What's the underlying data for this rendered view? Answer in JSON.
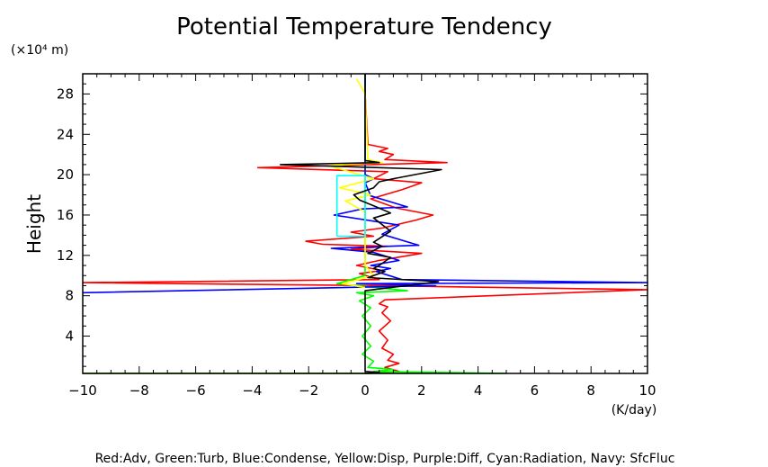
{
  "chart_data": {
    "type": "line",
    "title": "Potential Temperature Tendency",
    "ylabel": "Height",
    "y_unit": "(×10⁴ m)",
    "x_unit": "(K/day)",
    "xlim": [
      -10,
      10
    ],
    "ylim": [
      0.3,
      30
    ],
    "x_ticks": [
      -10,
      -8,
      -6,
      -4,
      -2,
      0,
      2,
      4,
      6,
      8,
      10
    ],
    "x_tick_labels": [
      "−10",
      "−8",
      "−6",
      "−4",
      "−2",
      "0",
      "2",
      "4",
      "6",
      "8",
      "10"
    ],
    "y_ticks": [
      4,
      8,
      12,
      16,
      20,
      24,
      28
    ],
    "y_tick_labels": [
      "4",
      "8",
      "12",
      "16",
      "20",
      "24",
      "28"
    ],
    "caption": "Red:Adv, Green:Turb, Blue:Condense, Yellow:Disp, Purple:Diff, Cyan:Radiation, Navy: SfcFluc",
    "series": [
      {
        "color": "#ff0000",
        "points": [
          [
            -10,
            0.3
          ],
          [
            0.2,
            0.3
          ],
          [
            1.2,
            0.5
          ],
          [
            0.7,
            0.9
          ],
          [
            1.2,
            1.3
          ],
          [
            0.8,
            1.6
          ],
          [
            1.0,
            2.2
          ],
          [
            0.6,
            2.8
          ],
          [
            0.8,
            3.6
          ],
          [
            0.5,
            4.5
          ],
          [
            0.9,
            5.5
          ],
          [
            0.6,
            6.3
          ],
          [
            0.8,
            6.9
          ],
          [
            0.5,
            7.2
          ],
          [
            0.7,
            7.6
          ],
          [
            10,
            8.6
          ],
          [
            0.5,
            9.0
          ],
          [
            -10,
            9.3
          ],
          [
            0.5,
            9.6
          ],
          [
            -0.2,
            10.2
          ],
          [
            0.6,
            10.5
          ],
          [
            -0.3,
            11.0
          ],
          [
            0.5,
            11.5
          ],
          [
            2.0,
            12.2
          ],
          [
            -0.5,
            12.6
          ],
          [
            0.8,
            12.9
          ],
          [
            -1.5,
            13.1
          ],
          [
            -2.1,
            13.4
          ],
          [
            0.3,
            13.9
          ],
          [
            -0.5,
            14.3
          ],
          [
            0.6,
            14.7
          ],
          [
            1.8,
            15.5
          ],
          [
            2.4,
            16.0
          ],
          [
            1.1,
            16.7
          ],
          [
            0.2,
            17.6
          ],
          [
            1.3,
            18.5
          ],
          [
            2.0,
            19.2
          ],
          [
            0.3,
            19.6
          ],
          [
            0.8,
            20.3
          ],
          [
            -3.8,
            20.7
          ],
          [
            2.9,
            21.2
          ],
          [
            0.7,
            21.5
          ],
          [
            1.0,
            22.0
          ],
          [
            0.5,
            22.3
          ],
          [
            0.8,
            22.6
          ],
          [
            0.1,
            23.0
          ],
          [
            0,
            28
          ]
        ]
      },
      {
        "color": "#00ff00",
        "points": [
          [
            -10,
            0.3
          ],
          [
            5,
            0.3
          ],
          [
            0.3,
            0.5
          ],
          [
            1.0,
            0.7
          ],
          [
            0.1,
            0.9
          ],
          [
            0.3,
            1.5
          ],
          [
            -0.1,
            2.2
          ],
          [
            0.2,
            3.0
          ],
          [
            -0.1,
            4.0
          ],
          [
            0.2,
            5.0
          ],
          [
            -0.1,
            6.0
          ],
          [
            0.2,
            6.8
          ],
          [
            -0.2,
            7.5
          ],
          [
            0.3,
            8.0
          ],
          [
            -0.3,
            8.3
          ],
          [
            1.5,
            8.5
          ],
          [
            -1.0,
            9.2
          ],
          [
            0,
            10
          ],
          [
            0,
            30
          ]
        ]
      },
      {
        "color": "#0000ff",
        "points": [
          [
            -10,
            8.3
          ],
          [
            2.5,
            9.0
          ],
          [
            -0.3,
            9.2
          ],
          [
            10,
            9.3
          ],
          [
            1.3,
            9.6
          ],
          [
            0.4,
            10.4
          ],
          [
            0.9,
            10.7
          ],
          [
            0.2,
            11.0
          ],
          [
            1.2,
            11.5
          ],
          [
            0.3,
            12.3
          ],
          [
            -1.2,
            12.7
          ],
          [
            -0.2,
            12.8
          ],
          [
            1.9,
            13.0
          ],
          [
            0.6,
            14.1
          ],
          [
            1.2,
            15.0
          ],
          [
            -1.1,
            16.0
          ],
          [
            -0.1,
            16.6
          ],
          [
            1.5,
            16.8
          ],
          [
            0.2,
            17.9
          ],
          [
            0.0,
            19.2
          ],
          [
            0.3,
            19.6
          ],
          [
            0.0,
            20.0
          ],
          [
            0,
            30
          ]
        ]
      },
      {
        "color": "#ffff00",
        "points": [
          [
            0,
            8.8
          ],
          [
            -0.8,
            9.2
          ],
          [
            0.3,
            10.0
          ],
          [
            0,
            11
          ],
          [
            0,
            16.3
          ],
          [
            -0.7,
            17.4
          ],
          [
            0.2,
            18.0
          ],
          [
            -0.9,
            18.7
          ],
          [
            0.3,
            19.6
          ],
          [
            -1.3,
            20.9
          ],
          [
            0.6,
            21.2
          ],
          [
            0.1,
            21.5
          ],
          [
            0,
            28
          ],
          [
            -0.3,
            29.5
          ]
        ]
      },
      {
        "color": "#00ffff",
        "points": [
          [
            -1.0,
            13.9
          ],
          [
            0,
            13.9
          ],
          [
            0,
            19.9
          ],
          [
            -1.0,
            19.9
          ],
          [
            -1.0,
            13.9
          ]
        ]
      },
      {
        "color": "#000000",
        "points": [
          [
            0,
            0.3
          ],
          [
            0.5,
            0.4
          ],
          [
            0,
            0.5
          ],
          [
            0,
            8.5
          ],
          [
            2.6,
            9.4
          ],
          [
            0.1,
            9.8
          ],
          [
            0.7,
            10.4
          ],
          [
            0.3,
            10.7
          ],
          [
            0.5,
            11.0
          ],
          [
            0.9,
            11.8
          ],
          [
            0.1,
            12.2
          ],
          [
            0.6,
            12.9
          ],
          [
            0.3,
            13.3
          ],
          [
            0.9,
            14.4
          ],
          [
            0.3,
            15.7
          ],
          [
            0.9,
            16.2
          ],
          [
            0.4,
            16.8
          ],
          [
            -0.2,
            17.5
          ],
          [
            -0.4,
            18.0
          ],
          [
            0.3,
            18.7
          ],
          [
            0.5,
            19.3
          ],
          [
            1.0,
            19.6
          ],
          [
            2.7,
            20.5
          ],
          [
            -3.0,
            21.0
          ],
          [
            0.5,
            21.2
          ],
          [
            0,
            21.4
          ],
          [
            0,
            30
          ]
        ]
      }
    ]
  }
}
